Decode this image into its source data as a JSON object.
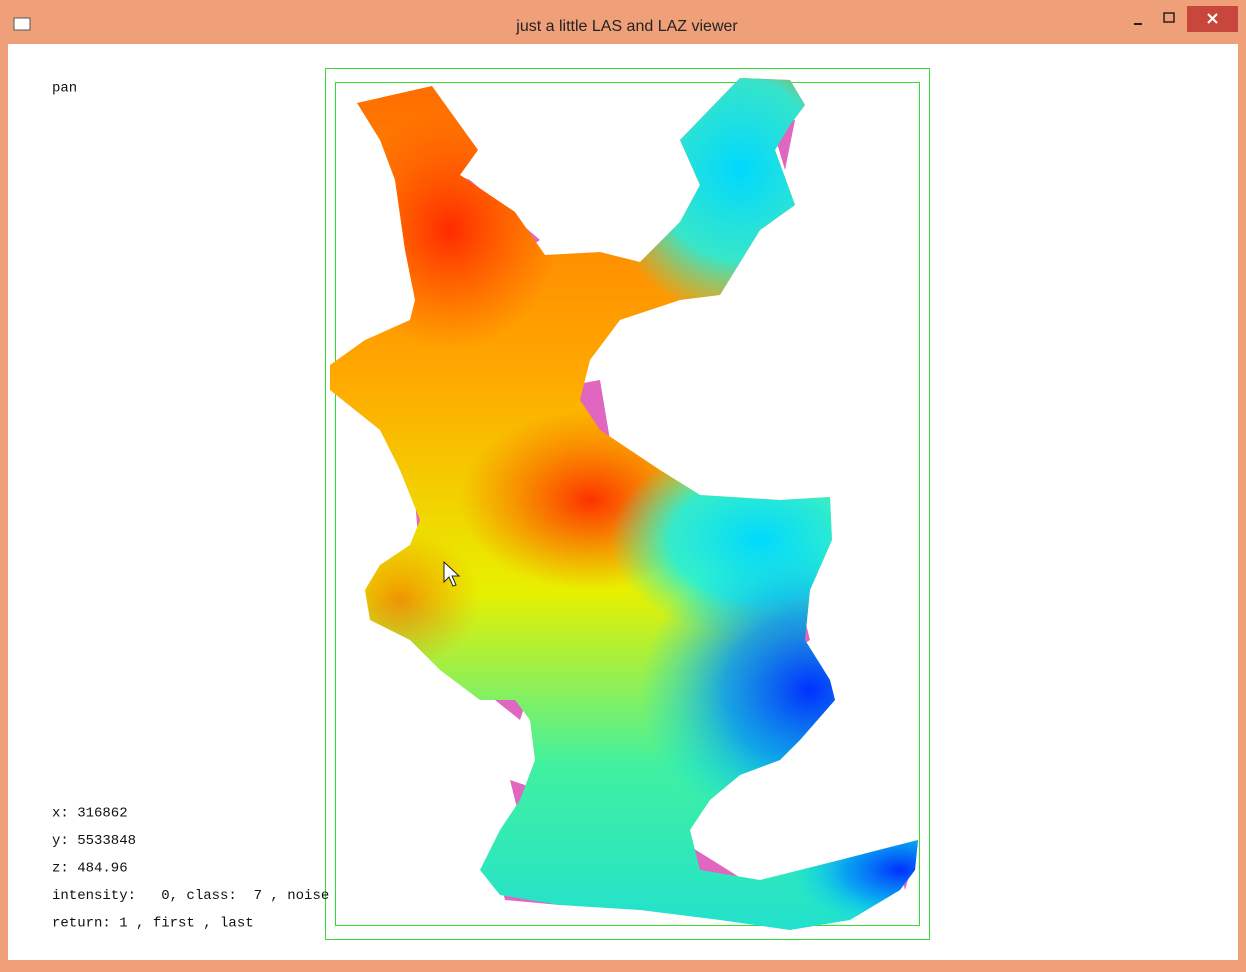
{
  "window": {
    "title": "just a little LAS and LAZ viewer"
  },
  "viewer": {
    "mode": "pan",
    "status": [
      "x: 316862",
      "y: 5533848",
      "z: 484.96",
      "intensity:   0, class:  7 , noise",
      "return: 1 , first , last"
    ]
  }
}
